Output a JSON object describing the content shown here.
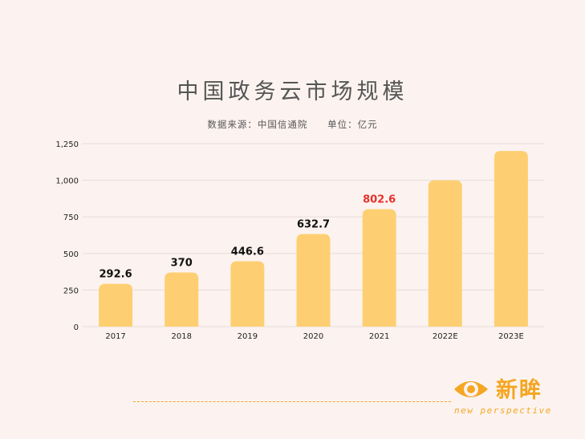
{
  "chart_data": {
    "type": "bar",
    "title": "中国政务云市场规模",
    "source": "数据来源：中国信通院",
    "unit": "单位：亿元",
    "categories": [
      "2017",
      "2018",
      "2019",
      "2020",
      "2021",
      "2022E",
      "2023E"
    ],
    "values": [
      292.6,
      370,
      446.6,
      632.7,
      802.6,
      1000,
      1200
    ],
    "data_labels": [
      "292.6",
      "370",
      "446.6",
      "632.7",
      "802.6",
      "",
      ""
    ],
    "highlight_index": 4,
    "ylim": [
      0,
      1250
    ],
    "yticks": [
      0,
      250,
      500,
      750,
      1000,
      1250
    ],
    "ytick_labels": [
      "0",
      "250",
      "500",
      "750",
      "1,000",
      "1,250"
    ],
    "xlabel": "",
    "ylabel": "",
    "grid": true,
    "colors": {
      "bar": "#fecf72",
      "label": "#111111",
      "highlight_label": "#e8312b",
      "grid": "#e6dcda"
    }
  },
  "brand": {
    "name": "新眸",
    "tagline": "new perspective",
    "color": "#f5a623"
  }
}
